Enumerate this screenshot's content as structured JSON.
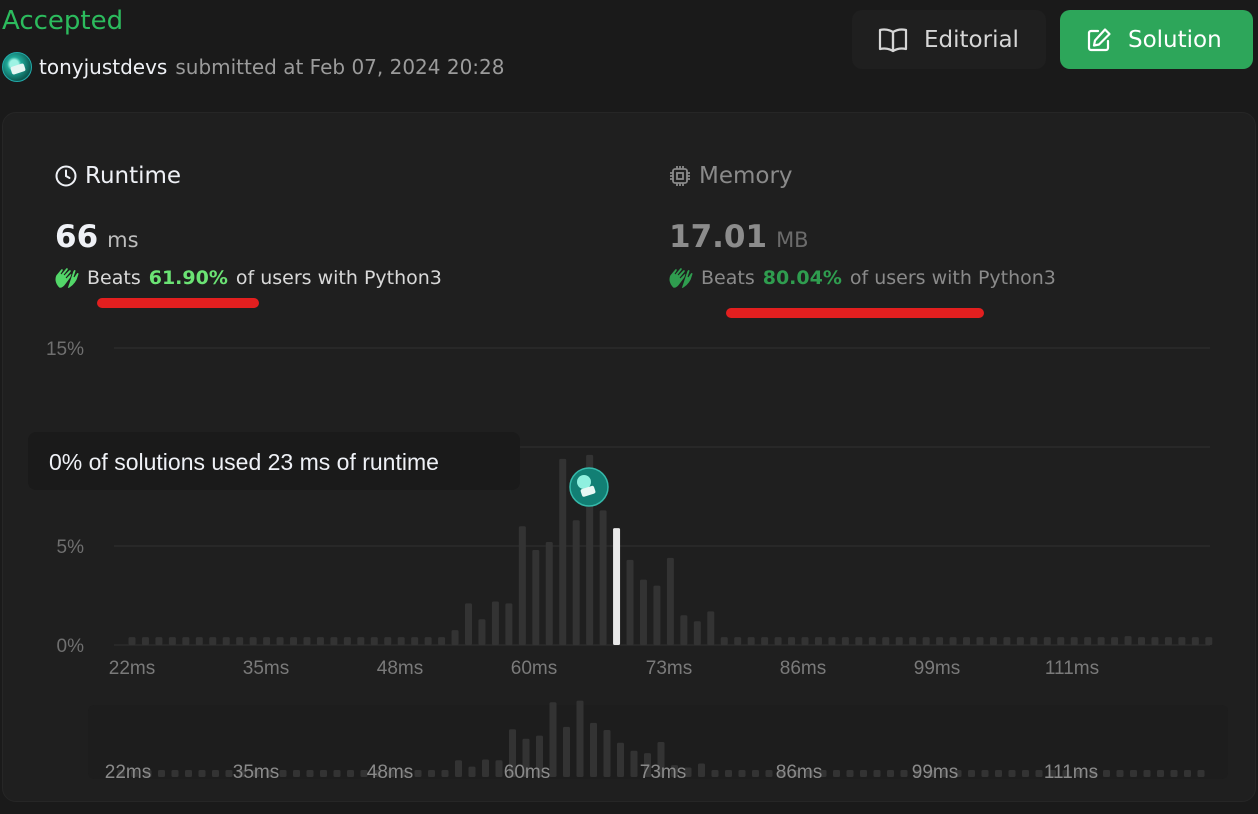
{
  "header": {
    "status": "Accepted",
    "username": "tonyjustdevs",
    "submitted_text": "submitted at Feb 07, 2024 20:28",
    "editorial_label": "Editorial",
    "solution_label": "Solution",
    "accent_color": "#2cbb5d"
  },
  "runtime": {
    "title": "Runtime",
    "value": "66",
    "unit": "ms",
    "beats_prefix": "Beats",
    "beats_pct": "61.90%",
    "beats_suffix": "of users with Python3"
  },
  "memory": {
    "title": "Memory",
    "value": "17.01",
    "unit": "MB",
    "beats_prefix": "Beats",
    "beats_pct": "80.04%",
    "beats_suffix": "of users with Python3"
  },
  "tooltip": {
    "text": "0% of solutions used 23 ms of runtime"
  },
  "chart_data": {
    "type": "bar",
    "y_ticks": [
      "15%",
      "10%",
      "5%",
      "0%"
    ],
    "ylim": [
      0,
      15
    ],
    "x_tick_labels": [
      "22ms",
      "35ms",
      "48ms",
      "60ms",
      "73ms",
      "86ms",
      "99ms",
      "111ms"
    ],
    "highlighted_index": 36,
    "values": [
      0.4,
      0.4,
      0.4,
      0.4,
      0.4,
      0.4,
      0.4,
      0.4,
      0.4,
      0.4,
      0.4,
      0.4,
      0.4,
      0.4,
      0.4,
      0.4,
      0.4,
      0.4,
      0.4,
      0.4,
      0.4,
      0.4,
      0.4,
      0.4,
      0.75,
      2.1,
      1.3,
      2.2,
      2.1,
      6.0,
      4.8,
      5.2,
      9.4,
      6.3,
      9.6,
      6.8,
      5.9,
      4.3,
      3.3,
      3.0,
      4.4,
      1.5,
      1.2,
      1.7,
      0.4,
      0.4,
      0.4,
      0.4,
      0.4,
      0.4,
      0.4,
      0.4,
      0.4,
      0.4,
      0.4,
      0.4,
      0.4,
      0.4,
      0.4,
      0.4,
      0.4,
      0.4,
      0.4,
      0.4,
      0.4,
      0.4,
      0.4,
      0.4,
      0.4,
      0.4,
      0.4,
      0.4,
      0.4,
      0.4,
      0.45,
      0.4,
      0.4,
      0.4,
      0.4,
      0.4,
      0.4
    ]
  }
}
